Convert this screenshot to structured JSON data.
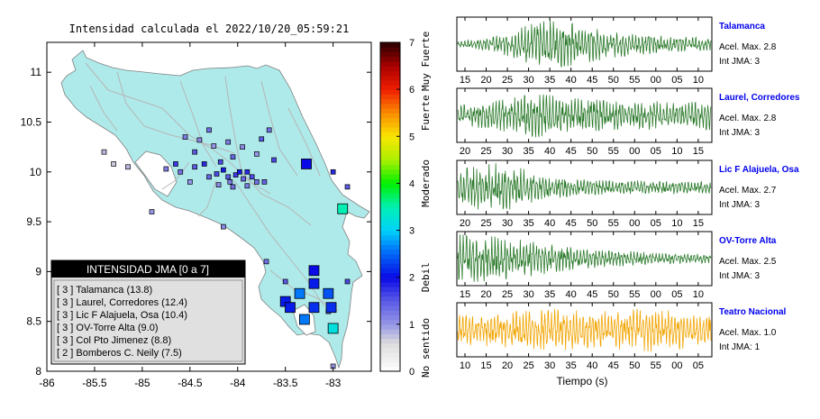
{
  "title": "Intensidad calculada el 2022/10/20_05:59:21",
  "map": {
    "x_ticks": [
      "-86",
      "-85.5",
      "-85",
      "-84.5",
      "-84",
      "-83.5",
      "-83"
    ],
    "y_ticks": [
      "11",
      "10.5",
      "10",
      "9.5",
      "9",
      "8.5",
      "8"
    ],
    "xlim": [
      -86,
      -82.6
    ],
    "ylim": [
      8,
      11.3
    ],
    "land_color": "#afeaea",
    "stations": [
      {
        "lon": -84.55,
        "lat": 10.35,
        "v": 1.2
      },
      {
        "lon": -84.45,
        "lat": 10.2,
        "v": 1.5
      },
      {
        "lon": -84.4,
        "lat": 10.32,
        "v": 1.1
      },
      {
        "lon": -84.3,
        "lat": 10.42,
        "v": 1.3
      },
      {
        "lon": -84.25,
        "lat": 10.26,
        "v": 1.0
      },
      {
        "lon": -84.18,
        "lat": 10.1,
        "v": 1.6
      },
      {
        "lon": -84.1,
        "lat": 10.3,
        "v": 1.2
      },
      {
        "lon": -84.05,
        "lat": 10.15,
        "v": 1.4
      },
      {
        "lon": -83.95,
        "lat": 10.25,
        "v": 1.1
      },
      {
        "lon": -83.8,
        "lat": 10.18,
        "v": 1.0
      },
      {
        "lon": -83.75,
        "lat": 10.33,
        "v": 1.5
      },
      {
        "lon": -84.65,
        "lat": 10.08,
        "v": 1.7
      },
      {
        "lon": -84.6,
        "lat": 10.0,
        "v": 1.3
      },
      {
        "lon": -84.45,
        "lat": 10.05,
        "v": 1.5
      },
      {
        "lon": -84.35,
        "lat": 10.08,
        "v": 1.8
      },
      {
        "lon": -84.3,
        "lat": 9.95,
        "v": 1.4
      },
      {
        "lon": -84.22,
        "lat": 9.98,
        "v": 1.6
      },
      {
        "lon": -84.15,
        "lat": 10.02,
        "v": 1.9
      },
      {
        "lon": -84.1,
        "lat": 9.95,
        "v": 1.5
      },
      {
        "lon": -84.08,
        "lat": 9.9,
        "v": 1.2
      },
      {
        "lon": -84.02,
        "lat": 9.97,
        "v": 1.7
      },
      {
        "lon": -83.98,
        "lat": 10.0,
        "v": 1.9
      },
      {
        "lon": -83.94,
        "lat": 9.93,
        "v": 1.4
      },
      {
        "lon": -83.9,
        "lat": 9.86,
        "v": 1.2
      },
      {
        "lon": -83.85,
        "lat": 9.95,
        "v": 1.6
      },
      {
        "lon": -83.8,
        "lat": 9.9,
        "v": 1.3
      },
      {
        "lon": -83.9,
        "lat": 10.0,
        "v": 1.8
      },
      {
        "lon": -84.05,
        "lat": 9.85,
        "v": 1.3
      },
      {
        "lon": -84.2,
        "lat": 9.87,
        "v": 1.1
      },
      {
        "lon": -84.5,
        "lat": 9.9,
        "v": 1.0
      },
      {
        "lon": -84.75,
        "lat": 10.03,
        "v": 1.2
      },
      {
        "lon": -85.15,
        "lat": 10.05,
        "v": 0.8
      },
      {
        "lon": -85.3,
        "lat": 10.08,
        "v": 0.7
      },
      {
        "lon": -85.4,
        "lat": 10.2,
        "v": 0.8
      },
      {
        "lon": -84.9,
        "lat": 9.6,
        "v": 1.0
      },
      {
        "lon": -84.15,
        "lat": 9.45,
        "v": 1.1
      },
      {
        "lon": -83.72,
        "lat": 9.9,
        "v": 1.4
      },
      {
        "lon": -83.62,
        "lat": 10.12,
        "v": 1.6
      },
      {
        "lon": -83.67,
        "lat": 10.42,
        "v": 1.3
      },
      {
        "lon": -83.0,
        "lat": 10.0,
        "v": 1.8
      },
      {
        "lon": -82.85,
        "lat": 9.85,
        "v": 1.5
      },
      {
        "lon": -83.7,
        "lat": 9.1,
        "v": 1.3
      },
      {
        "lon": -83.5,
        "lat": 8.9,
        "v": 1.5
      },
      {
        "lon": -82.85,
        "lat": 8.9,
        "v": 1.6
      },
      {
        "lon": -83.05,
        "lat": 8.6,
        "v": 1.3
      },
      {
        "lon": -83.0,
        "lat": 8.05,
        "v": 1.0
      }
    ],
    "big_stations": [
      {
        "lon": -83.28,
        "lat": 10.08,
        "v": 2.0
      },
      {
        "lon": -82.9,
        "lat": 9.63,
        "v": 3.5
      },
      {
        "lon": -83.2,
        "lat": 9.01,
        "v": 2.0
      },
      {
        "lon": -83.2,
        "lat": 8.88,
        "v": 2.1
      },
      {
        "lon": -83.35,
        "lat": 8.78,
        "v": 2.6
      },
      {
        "lon": -83.05,
        "lat": 8.78,
        "v": 2.4
      },
      {
        "lon": -83.5,
        "lat": 8.7,
        "v": 2.1
      },
      {
        "lon": -83.45,
        "lat": 8.64,
        "v": 2.1
      },
      {
        "lon": -83.2,
        "lat": 8.64,
        "v": 2.2
      },
      {
        "lon": -83.02,
        "lat": 8.64,
        "v": 2.2
      },
      {
        "lon": -83.3,
        "lat": 8.52,
        "v": 2.6
      },
      {
        "lon": -83.0,
        "lat": 8.43,
        "v": 3.2
      }
    ]
  },
  "colorbar": {
    "ticks": [
      "0",
      "1",
      "2",
      "3",
      "4",
      "5",
      "6",
      "7"
    ],
    "labels": [
      "No sentido",
      "Debil",
      "Moderado",
      "Fuerte",
      "Muy Fuerte"
    ]
  },
  "legend": {
    "header": "INTENSIDAD JMA [0 a 7]",
    "items": [
      "[ 3 ]  Talamanca (13.8)",
      "[ 3 ]  Laurel, Corredores (12.4)",
      "[ 3 ]  Lic F Alajuela, Osa (10.4)",
      "[ 3 ]  OV-Torre Alta (9.0)",
      "[ 3 ]  Col Pto Jimenez (8.8)",
      "[ 2 ]  Bomberos C. Neily (7.5)"
    ]
  },
  "chart_data": [
    {
      "type": "scatter",
      "title": "Intensidad calculada el 2022/10/20_05:59:21",
      "xlim": [
        -86,
        -82.6
      ],
      "ylim": [
        8,
        11.3
      ],
      "colorbar_range": [
        0,
        7
      ]
    },
    {
      "type": "line",
      "xlabel": "Tiempo (s)",
      "series": [
        {
          "name": "Talamanca",
          "accel_label": "Acel. Max. 2.8",
          "int_label": "Int JMA: 3",
          "color": "#2b7a2b",
          "ticks": [
            "15",
            "20",
            "25",
            "30",
            "35",
            "40",
            "45",
            "50",
            "55",
            "00",
            "05",
            "10"
          ],
          "t0": 12.5,
          "amps": [
            0.12,
            0.2,
            0.35,
            0.6,
            0.9,
            1.0,
            0.85,
            0.7,
            0.55,
            0.45,
            0.4,
            0.32,
            0.28,
            0.25
          ]
        },
        {
          "name": "Laurel, Corredores",
          "accel_label": "Acel. Max. 2.8",
          "int_label": "Int JMA: 3",
          "color": "#2b7a2b",
          "ticks": [
            "20",
            "25",
            "30",
            "35",
            "40",
            "45",
            "50",
            "55",
            "00",
            "05",
            "10",
            "15"
          ],
          "t0": 17.3,
          "amps": [
            0.4,
            0.5,
            0.6,
            0.75,
            0.9,
            0.8,
            0.7,
            0.65,
            0.6,
            0.55,
            0.6,
            0.5,
            0.55,
            0.6
          ]
        },
        {
          "name": "Lic F Alajuela, Osa",
          "accel_label": "Acel. Max. 2.7",
          "int_label": "Int JMA: 3",
          "color": "#2b7a2b",
          "ticks": [
            "20",
            "25",
            "30",
            "35",
            "40",
            "45",
            "50",
            "55",
            "00",
            "05",
            "10",
            "15"
          ],
          "t0": 17.3,
          "amps": [
            0.7,
            0.9,
            1.0,
            0.85,
            0.6,
            0.45,
            0.35,
            0.3,
            0.28,
            0.3,
            0.25,
            0.28,
            0.22,
            0.25
          ]
        },
        {
          "name": "OV-Torre Alta",
          "accel_label": "Acel. Max. 2.5",
          "int_label": "Int JMA: 3",
          "color": "#2b7a2b",
          "ticks": [
            "15",
            "20",
            "25",
            "30",
            "35",
            "40",
            "45",
            "50",
            "55",
            "00",
            "05",
            "10"
          ],
          "t0": 13.3,
          "amps": [
            1.0,
            0.95,
            0.9,
            0.8,
            0.7,
            0.55,
            0.45,
            0.38,
            0.32,
            0.3,
            0.25,
            0.22,
            0.2,
            0.18
          ]
        },
        {
          "name": "Teatro Nacional",
          "accel_label": "Acel. Max. 1.0",
          "int_label": "Int JMA: 1",
          "color": "#f2a400",
          "ticks": [
            "10",
            "15",
            "20",
            "25",
            "30",
            "35",
            "40",
            "45",
            "50",
            "55",
            "00",
            "05"
          ],
          "t0": 8.4,
          "amps": [
            0.6,
            0.65,
            0.7,
            0.75,
            0.8,
            0.85,
            0.8,
            0.75,
            0.8,
            0.85,
            0.9,
            0.8,
            0.75,
            0.7
          ]
        }
      ]
    }
  ]
}
